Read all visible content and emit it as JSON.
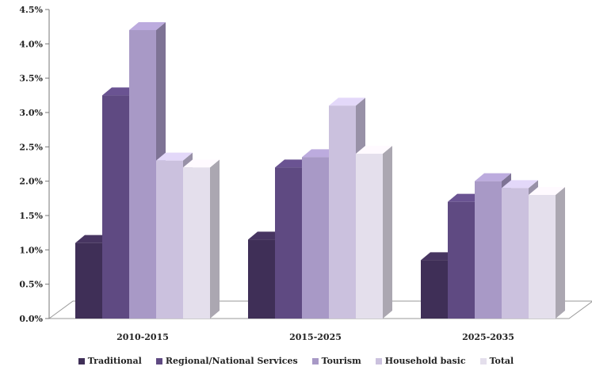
{
  "chart_data": {
    "type": "bar",
    "categories": [
      "2010-2015",
      "2015-2025",
      "2025-2035"
    ],
    "series": [
      {
        "name": "Traditional",
        "values": [
          1.1,
          1.15,
          0.85
        ],
        "color": "#3f2f57"
      },
      {
        "name": "Regional/National Services",
        "values": [
          3.25,
          2.2,
          1.7
        ],
        "color": "#5f4a82"
      },
      {
        "name": "Tourism",
        "values": [
          4.2,
          2.35,
          2.0
        ],
        "color": "#a899c6"
      },
      {
        "name": "Household basic",
        "values": [
          2.3,
          3.1,
          1.9
        ],
        "color": "#cbc1de"
      },
      {
        "name": "Total",
        "values": [
          2.2,
          2.4,
          1.8
        ],
        "color": "#e4dfec"
      }
    ],
    "ylim": [
      0,
      4.5
    ],
    "y_ticks": [
      "0.0%",
      "0.5%",
      "1.0%",
      "1.5%",
      "2.0%",
      "2.5%",
      "3.0%",
      "3.5%",
      "4.0%",
      "4.5%"
    ],
    "legend_position": "bottom",
    "grid": false
  }
}
